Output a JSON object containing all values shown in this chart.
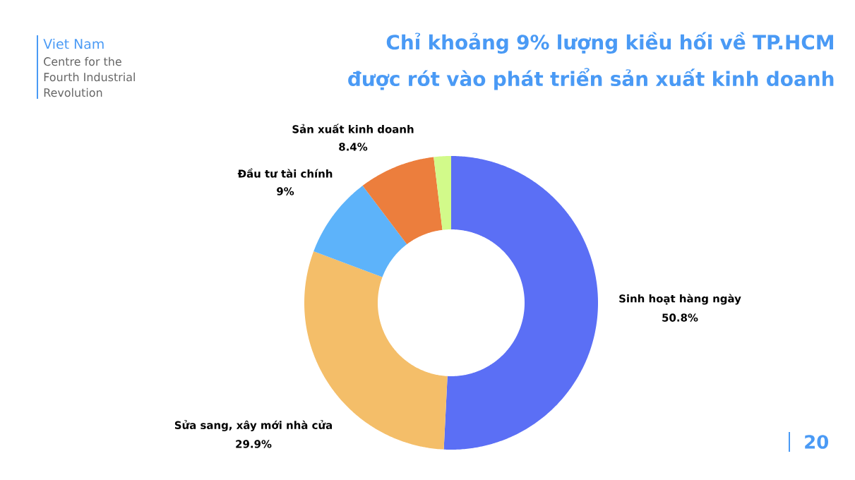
{
  "chart_data": {
    "type": "donut",
    "title": "Chỉ khoảng 9% lượng kiều hối về TP.HCM được rót vào phát triển sản xuất kinh doanh",
    "categories": [
      "Sinh hoạt hàng ngày",
      "Sửa sang, xây mới nhà cửa",
      "Đầu tư tài chính",
      "Sản xuất kinh doanh",
      null
    ],
    "values": [
      50.8,
      29.9,
      9,
      8.4,
      1.9
    ],
    "colors": [
      "#5b6ff5",
      "#f4be69",
      "#5db3fa",
      "#ec7e3d",
      "#d2fa8a"
    ],
    "value_labels": [
      "50.8%",
      "29.9%",
      "9%",
      "8.4%",
      null
    ],
    "annotations": [
      "Viet Nam",
      "Centre for the",
      "Fourth Industrial",
      "Revolution",
      "20"
    ]
  }
}
